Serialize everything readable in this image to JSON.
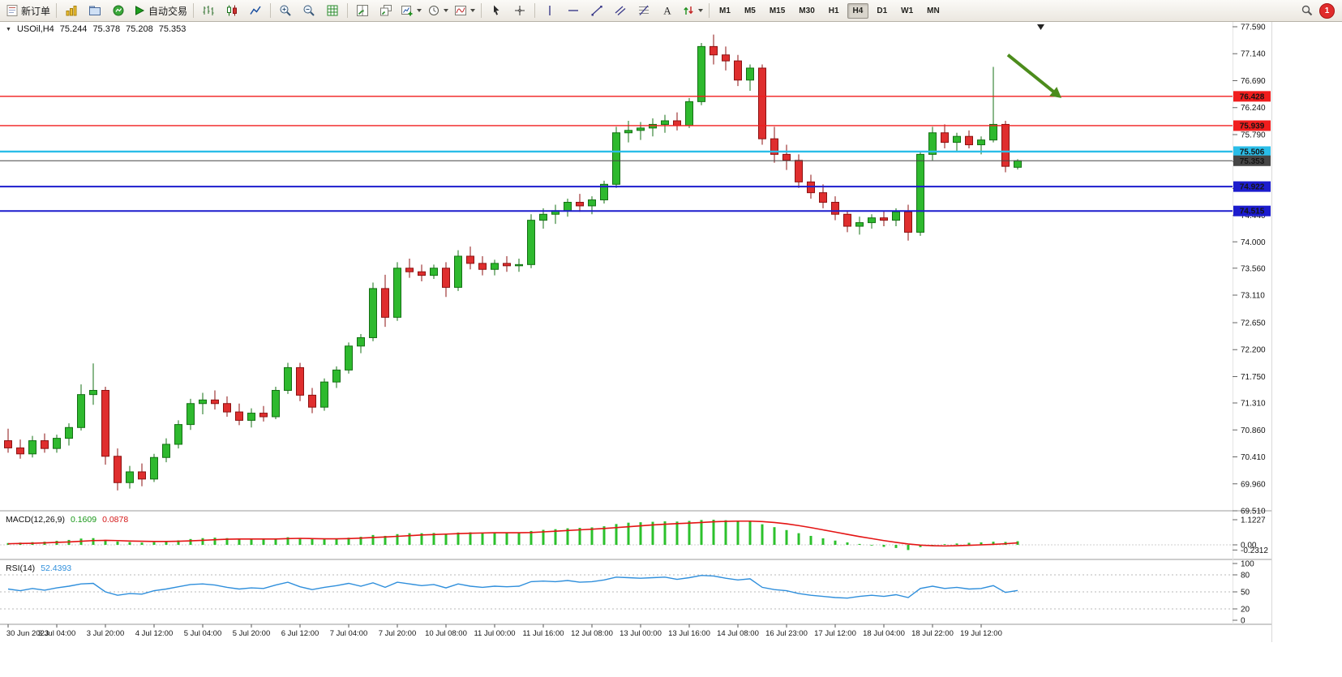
{
  "toolbar": {
    "new_order_label": "新订单",
    "auto_trading_label": "自动交易",
    "timeframes": [
      "M1",
      "M5",
      "M15",
      "M30",
      "H1",
      "H4",
      "D1",
      "W1",
      "MN"
    ],
    "active_timeframe": "H4",
    "notification_count": "1"
  },
  "chart_header": {
    "symbol_period": "USOil,H4",
    "open": "75.244",
    "high": "75.378",
    "low": "75.208",
    "close": "75.353"
  },
  "macd_label": {
    "name": "MACD(12,26,9)",
    "main": "0.1609",
    "signal": "0.0878"
  },
  "rsi_label": {
    "name": "RSI(14)",
    "value": "52.4393"
  },
  "chart_data": {
    "type": "candlestick",
    "symbol": "USOil",
    "period": "H4",
    "ylim": [
      69.51,
      77.59
    ],
    "price_axis_ticks": [
      "77.590",
      "77.140",
      "76.690",
      "76.240",
      "75.790",
      "75.340",
      "74.890",
      "74.440",
      "74.000",
      "73.560",
      "73.110",
      "72.650",
      "72.200",
      "71.750",
      "71.310",
      "70.860",
      "70.410",
      "69.960",
      "69.510"
    ],
    "time_labels": [
      "30 Jun 2023",
      "3 Jul 04:00",
      "3 Jul 20:00",
      "4 Jul 12:00",
      "5 Jul 04:00",
      "5 Jul 20:00",
      "6 Jul 12:00",
      "7 Jul 04:00",
      "7 Jul 20:00",
      "10 Jul 08:00",
      "11 Jul 00:00",
      "11 Jul 16:00",
      "12 Jul 08:00",
      "13 Jul 00:00",
      "13 Jul 16:00",
      "14 Jul 08:00",
      "16 Jul 23:00",
      "17 Jul 12:00",
      "18 Jul 04:00",
      "18 Jul 22:00",
      "19 Jul 12:00"
    ],
    "label_every_n_bars": 4,
    "colors": {
      "bull": "#2eb92e",
      "bull_border": "#147014",
      "bear": "#df2e2e",
      "bear_border": "#8c1212",
      "background": "#ffffff"
    },
    "candles": [
      [
        70.68,
        70.88,
        70.48,
        70.56
      ],
      [
        70.56,
        70.7,
        70.38,
        70.46
      ],
      [
        70.46,
        70.76,
        70.4,
        70.68
      ],
      [
        70.68,
        70.8,
        70.48,
        70.55
      ],
      [
        70.55,
        70.78,
        70.48,
        70.72
      ],
      [
        70.72,
        70.97,
        70.6,
        70.9
      ],
      [
        70.9,
        71.62,
        70.85,
        71.45
      ],
      [
        71.45,
        71.97,
        71.28,
        71.52
      ],
      [
        71.52,
        71.58,
        70.28,
        70.42
      ],
      [
        70.42,
        70.55,
        69.85,
        69.98
      ],
      [
        69.98,
        70.26,
        69.88,
        70.16
      ],
      [
        70.16,
        70.3,
        69.92,
        70.04
      ],
      [
        70.04,
        70.46,
        69.99,
        70.4
      ],
      [
        70.4,
        70.72,
        70.32,
        70.62
      ],
      [
        70.62,
        71.02,
        70.55,
        70.95
      ],
      [
        70.95,
        71.38,
        70.86,
        71.3
      ],
      [
        71.3,
        71.48,
        71.12,
        71.36
      ],
      [
        71.36,
        71.52,
        71.2,
        71.3
      ],
      [
        71.3,
        71.42,
        71.08,
        71.16
      ],
      [
        71.16,
        71.3,
        70.94,
        71.02
      ],
      [
        71.02,
        71.22,
        70.9,
        71.14
      ],
      [
        71.14,
        71.26,
        71.0,
        71.08
      ],
      [
        71.08,
        71.58,
        71.04,
        71.52
      ],
      [
        71.52,
        71.98,
        71.46,
        71.9
      ],
      [
        71.9,
        71.98,
        71.34,
        71.44
      ],
      [
        71.44,
        71.56,
        71.14,
        71.24
      ],
      [
        71.24,
        71.72,
        71.18,
        71.66
      ],
      [
        71.66,
        71.92,
        71.56,
        71.86
      ],
      [
        71.86,
        72.32,
        71.8,
        72.26
      ],
      [
        72.26,
        72.46,
        72.14,
        72.4
      ],
      [
        72.4,
        73.32,
        72.34,
        73.22
      ],
      [
        73.22,
        73.45,
        72.58,
        72.74
      ],
      [
        72.74,
        73.66,
        72.68,
        73.56
      ],
      [
        73.56,
        73.72,
        73.4,
        73.5
      ],
      [
        73.5,
        73.62,
        73.34,
        73.44
      ],
      [
        73.44,
        73.62,
        73.38,
        73.56
      ],
      [
        73.56,
        73.66,
        73.08,
        73.24
      ],
      [
        73.24,
        73.86,
        73.18,
        73.76
      ],
      [
        73.76,
        73.92,
        73.54,
        73.64
      ],
      [
        73.64,
        73.76,
        73.44,
        73.54
      ],
      [
        73.54,
        73.7,
        73.44,
        73.64
      ],
      [
        73.64,
        73.76,
        73.5,
        73.6
      ],
      [
        73.6,
        73.72,
        73.5,
        73.62
      ],
      [
        73.62,
        74.46,
        73.56,
        74.36
      ],
      [
        74.36,
        74.56,
        74.22,
        74.46
      ],
      [
        74.46,
        74.62,
        74.3,
        74.52
      ],
      [
        74.52,
        74.72,
        74.42,
        74.66
      ],
      [
        74.66,
        74.8,
        74.5,
        74.6
      ],
      [
        74.6,
        74.76,
        74.46,
        74.7
      ],
      [
        74.7,
        75.02,
        74.64,
        74.96
      ],
      [
        74.96,
        75.92,
        74.9,
        75.82
      ],
      [
        75.82,
        76.02,
        75.66,
        75.86
      ],
      [
        75.86,
        76.0,
        75.7,
        75.9
      ],
      [
        75.9,
        76.06,
        75.76,
        75.96
      ],
      [
        75.96,
        76.12,
        75.82,
        76.02
      ],
      [
        76.02,
        76.16,
        75.86,
        75.94
      ],
      [
        75.94,
        76.4,
        75.9,
        76.34
      ],
      [
        76.34,
        77.32,
        76.28,
        77.26
      ],
      [
        77.26,
        77.46,
        76.96,
        77.12
      ],
      [
        77.12,
        77.26,
        76.86,
        77.02
      ],
      [
        77.02,
        77.12,
        76.6,
        76.7
      ],
      [
        76.7,
        76.96,
        76.52,
        76.9
      ],
      [
        76.9,
        76.96,
        75.62,
        75.72
      ],
      [
        75.72,
        75.92,
        75.32,
        75.46
      ],
      [
        75.46,
        75.62,
        75.2,
        75.36
      ],
      [
        75.36,
        75.46,
        74.9,
        75.0
      ],
      [
        75.0,
        75.12,
        74.72,
        74.82
      ],
      [
        74.82,
        74.96,
        74.56,
        74.66
      ],
      [
        74.66,
        74.76,
        74.36,
        74.46
      ],
      [
        74.46,
        74.52,
        74.16,
        74.26
      ],
      [
        74.26,
        74.42,
        74.12,
        74.32
      ],
      [
        74.32,
        74.46,
        74.22,
        74.4
      ],
      [
        74.4,
        74.52,
        74.26,
        74.36
      ],
      [
        74.36,
        74.56,
        74.26,
        74.5
      ],
      [
        74.5,
        74.62,
        74.02,
        74.16
      ],
      [
        74.16,
        75.52,
        74.1,
        75.46
      ],
      [
        75.46,
        75.92,
        75.36,
        75.82
      ],
      [
        75.82,
        75.96,
        75.56,
        75.66
      ],
      [
        75.66,
        75.82,
        75.52,
        75.76
      ],
      [
        75.76,
        75.86,
        75.56,
        75.62
      ],
      [
        75.62,
        75.76,
        75.46,
        75.7
      ],
      [
        75.7,
        76.92,
        75.66,
        75.96
      ],
      [
        75.96,
        76.02,
        75.16,
        75.26
      ],
      [
        75.244,
        75.378,
        75.208,
        75.353
      ]
    ],
    "horizontal_lines": [
      {
        "price": 76.428,
        "label": "76.428",
        "color": "#f01d1d",
        "width": 1.4,
        "current": false
      },
      {
        "price": 75.939,
        "label": "75.939",
        "color": "#f01d1d",
        "width": 1.4,
        "current": false
      },
      {
        "price": 75.506,
        "label": "75.506",
        "color": "#2abde8",
        "width": 2.4,
        "current": false
      },
      {
        "price": 75.353,
        "label": "75.353",
        "color": "#454545",
        "width": 1.0,
        "current": true
      },
      {
        "price": 74.922,
        "label": "74.922",
        "color": "#1c1ccd",
        "width": 2.0,
        "current": false
      },
      {
        "price": 74.515,
        "label": "74.515",
        "color": "#1c1ccd",
        "width": 2.0,
        "current": false
      }
    ],
    "arrow_annotation": {
      "from": {
        "bar": 82.2,
        "price": 77.12
      },
      "to": {
        "bar": 86.6,
        "price": 76.4
      },
      "color": "#4c8c1c"
    },
    "indicators": {
      "macd": {
        "params": "12,26,9",
        "hist_color": "#2cc12c",
        "signal_color": "#e41414",
        "scale_ticks": [
          "1.1227",
          "0.00",
          "-0.2312"
        ],
        "histogram": [
          0.08,
          0.1,
          0.12,
          0.14,
          0.18,
          0.22,
          0.28,
          0.3,
          0.22,
          0.15,
          0.12,
          0.1,
          0.12,
          0.15,
          0.2,
          0.26,
          0.3,
          0.32,
          0.3,
          0.27,
          0.25,
          0.24,
          0.28,
          0.34,
          0.3,
          0.26,
          0.25,
          0.27,
          0.32,
          0.36,
          0.44,
          0.4,
          0.48,
          0.52,
          0.52,
          0.53,
          0.5,
          0.55,
          0.56,
          0.55,
          0.54,
          0.53,
          0.53,
          0.62,
          0.67,
          0.7,
          0.74,
          0.76,
          0.78,
          0.83,
          0.93,
          0.99,
          1.01,
          1.03,
          1.05,
          1.04,
          1.07,
          1.11,
          1.1227,
          1.1,
          1.07,
          1.05,
          0.92,
          0.79,
          0.66,
          0.52,
          0.4,
          0.29,
          0.19,
          0.11,
          0.04,
          -0.03,
          -0.09,
          -0.14,
          -0.2312,
          -0.1,
          -0.02,
          0.03,
          0.06,
          0.09,
          0.11,
          0.14,
          0.13,
          0.1609
        ],
        "signal": [
          0.05,
          0.06,
          0.07,
          0.09,
          0.11,
          0.13,
          0.16,
          0.19,
          0.2,
          0.19,
          0.17,
          0.16,
          0.15,
          0.15,
          0.16,
          0.18,
          0.2,
          0.23,
          0.25,
          0.26,
          0.26,
          0.26,
          0.26,
          0.28,
          0.29,
          0.28,
          0.27,
          0.27,
          0.28,
          0.3,
          0.33,
          0.35,
          0.38,
          0.41,
          0.44,
          0.46,
          0.48,
          0.5,
          0.52,
          0.53,
          0.54,
          0.54,
          0.54,
          0.55,
          0.58,
          0.61,
          0.64,
          0.67,
          0.7,
          0.73,
          0.77,
          0.81,
          0.85,
          0.89,
          0.92,
          0.95,
          0.97,
          1.0,
          1.03,
          1.05,
          1.06,
          1.06,
          1.04,
          1.0,
          0.94,
          0.86,
          0.77,
          0.67,
          0.57,
          0.47,
          0.37,
          0.28,
          0.19,
          0.11,
          0.04,
          -0.01,
          -0.04,
          -0.05,
          -0.04,
          -0.02,
          0.0,
          0.02,
          0.05,
          0.0878
        ]
      },
      "rsi": {
        "period": 14,
        "color": "#2f8fdc",
        "scale_ticks": [
          "100",
          "80",
          "50",
          "20",
          "0"
        ],
        "levels": [
          80,
          50,
          20
        ],
        "values": [
          55,
          52,
          56,
          53,
          57,
          60,
          64,
          65,
          50,
          44,
          47,
          46,
          52,
          55,
          59,
          63,
          64,
          62,
          58,
          55,
          57,
          56,
          62,
          67,
          59,
          54,
          58,
          61,
          65,
          60,
          66,
          58,
          67,
          64,
          61,
          63,
          57,
          64,
          60,
          58,
          60,
          59,
          60,
          68,
          69,
          68,
          70,
          67,
          68,
          71,
          76,
          75,
          74,
          75,
          76,
          72,
          75,
          79,
          78,
          74,
          71,
          73,
          58,
          54,
          52,
          47,
          44,
          42,
          40,
          39,
          42,
          44,
          42,
          45,
          40,
          56,
          60,
          56,
          58,
          55,
          56,
          61,
          49,
          52.4393
        ]
      }
    }
  }
}
